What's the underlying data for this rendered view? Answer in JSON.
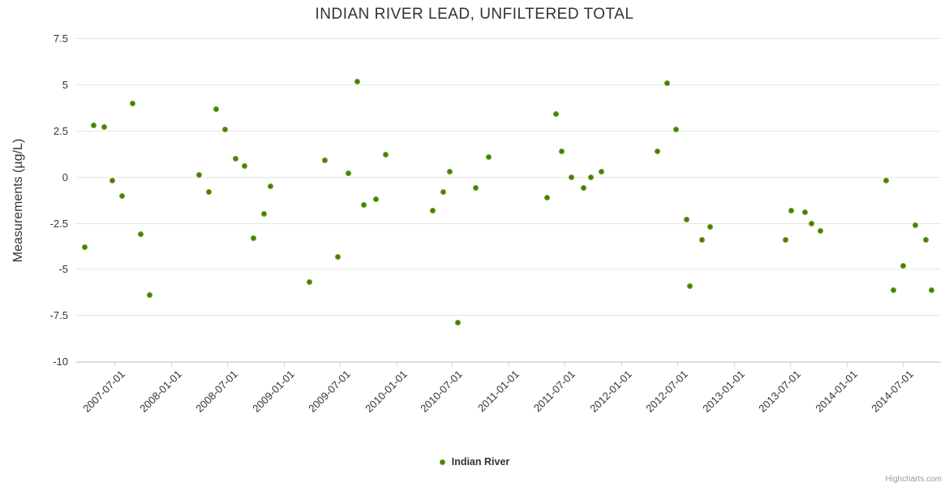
{
  "title": "INDIAN RIVER LEAD, UNFILTERED TOTAL",
  "credits": "Highcharts.com",
  "colors": {
    "marker_center": "#41700b",
    "marker_edge": "#8ac53e",
    "gridline": "#e6e6e6",
    "axis_and_ticks": "#ccd6eb",
    "text": "#333333",
    "credits_text": "#999999"
  },
  "chart_data": {
    "type": "scatter",
    "title": "INDIAN RIVER LEAD, UNFILTERED TOTAL",
    "xlabel": "",
    "ylabel": "Measurements (µg/L)",
    "ylim": [
      -10,
      7.5
    ],
    "grid": "horizontal",
    "legend_position": "bottom-center",
    "y_ticks": [
      7.5,
      5,
      2.5,
      0,
      -2.5,
      -5,
      -7.5,
      -10
    ],
    "x_ticks": [
      "2007-07-01",
      "2008-01-01",
      "2008-07-01",
      "2009-01-01",
      "2009-07-01",
      "2010-01-01",
      "2010-07-01",
      "2011-01-01",
      "2011-07-01",
      "2012-01-01",
      "2012-07-01",
      "2013-01-01",
      "2013-07-01",
      "2014-01-01",
      "2014-07-01"
    ],
    "series": [
      {
        "name": "Indian River",
        "points": [
          {
            "date": "2007-03-28",
            "value": -3.8
          },
          {
            "date": "2007-04-26",
            "value": 2.8
          },
          {
            "date": "2007-05-29",
            "value": 2.7
          },
          {
            "date": "2007-06-26",
            "value": -0.2
          },
          {
            "date": "2007-07-26",
            "value": -1.0
          },
          {
            "date": "2007-08-29",
            "value": 4.0
          },
          {
            "date": "2007-09-26",
            "value": -3.1
          },
          {
            "date": "2007-10-25",
            "value": -6.4
          },
          {
            "date": "2008-04-01",
            "value": 0.1
          },
          {
            "date": "2008-05-02",
            "value": -0.8
          },
          {
            "date": "2008-05-28",
            "value": 3.7
          },
          {
            "date": "2008-06-26",
            "value": 2.6
          },
          {
            "date": "2008-07-30",
            "value": 1.0
          },
          {
            "date": "2008-08-26",
            "value": 0.6
          },
          {
            "date": "2008-09-26",
            "value": -3.3
          },
          {
            "date": "2008-10-28",
            "value": -2.0
          },
          {
            "date": "2008-11-18",
            "value": -0.5
          },
          {
            "date": "2009-03-25",
            "value": -5.7
          },
          {
            "date": "2009-05-14",
            "value": 0.9
          },
          {
            "date": "2009-06-25",
            "value": -4.3
          },
          {
            "date": "2009-07-29",
            "value": 0.2
          },
          {
            "date": "2009-08-27",
            "value": 5.2
          },
          {
            "date": "2009-09-17",
            "value": -1.5
          },
          {
            "date": "2009-10-27",
            "value": -1.2
          },
          {
            "date": "2009-11-27",
            "value": 1.2
          },
          {
            "date": "2010-04-29",
            "value": -1.8
          },
          {
            "date": "2010-06-02",
            "value": -0.8
          },
          {
            "date": "2010-06-23",
            "value": 0.3
          },
          {
            "date": "2010-07-19",
            "value": -7.9
          },
          {
            "date": "2010-09-15",
            "value": -0.6
          },
          {
            "date": "2010-10-27",
            "value": 1.1
          },
          {
            "date": "2011-05-04",
            "value": -1.1
          },
          {
            "date": "2011-06-02",
            "value": 3.4
          },
          {
            "date": "2011-06-20",
            "value": 1.4
          },
          {
            "date": "2011-07-22",
            "value": 0.0
          },
          {
            "date": "2011-08-30",
            "value": -0.6
          },
          {
            "date": "2011-09-23",
            "value": 0.0
          },
          {
            "date": "2011-10-27",
            "value": 0.3
          },
          {
            "date": "2012-04-26",
            "value": 1.4
          },
          {
            "date": "2012-05-28",
            "value": 5.1
          },
          {
            "date": "2012-06-26",
            "value": 2.6
          },
          {
            "date": "2012-07-30",
            "value": -2.3
          },
          {
            "date": "2012-08-10",
            "value": -5.9
          },
          {
            "date": "2012-09-18",
            "value": -3.4
          },
          {
            "date": "2012-10-14",
            "value": -2.7
          },
          {
            "date": "2013-06-17",
            "value": -3.4
          },
          {
            "date": "2013-07-05",
            "value": -1.8
          },
          {
            "date": "2013-08-19",
            "value": -1.9
          },
          {
            "date": "2013-09-07",
            "value": -2.5
          },
          {
            "date": "2013-10-06",
            "value": -2.9
          },
          {
            "date": "2014-05-09",
            "value": -0.2
          },
          {
            "date": "2014-06-02",
            "value": -6.1
          },
          {
            "date": "2014-07-01",
            "value": -4.8
          },
          {
            "date": "2014-08-12",
            "value": -2.6
          },
          {
            "date": "2014-09-15",
            "value": -3.4
          },
          {
            "date": "2014-10-03",
            "value": -6.1
          }
        ]
      }
    ]
  }
}
